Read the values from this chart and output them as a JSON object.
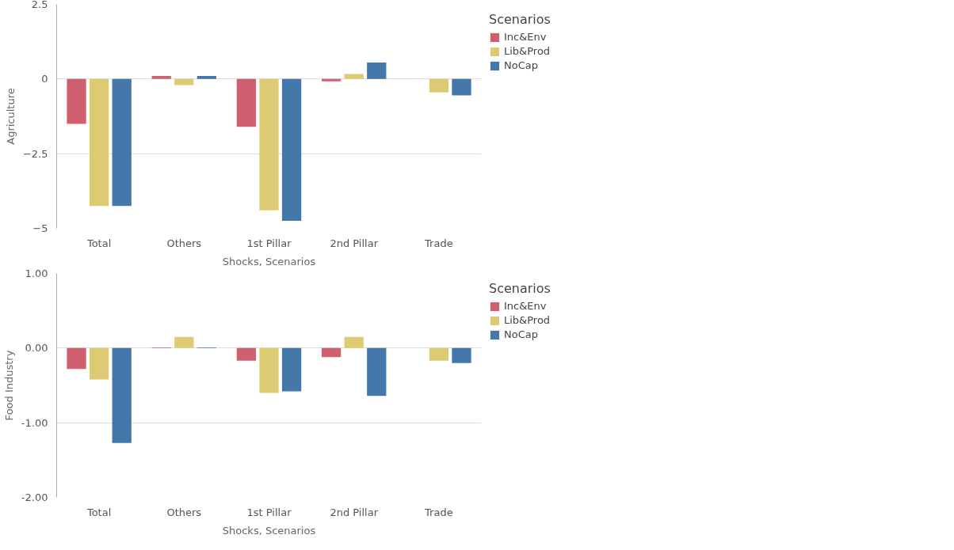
{
  "chart_data": [
    {
      "type": "bar",
      "xlabel": "Shocks, Scenarios",
      "ylabel": "Agriculture",
      "categories": [
        "Total",
        "Others",
        "1st Pillar",
        "2nd Pillar",
        "Trade"
      ],
      "legend_title": "Scenarios",
      "legend": "right",
      "grid": "y",
      "ylim": [
        -5,
        2.5
      ],
      "yticks": [
        2.5,
        0,
        -2.5,
        -5
      ],
      "series": [
        {
          "name": "Inc&Env",
          "color": "#d0606f",
          "values": [
            -1.5,
            0.1,
            -1.6,
            -0.08,
            null
          ]
        },
        {
          "name": "Lib&Prod",
          "color": "#dccb72",
          "values": [
            -4.25,
            -0.2,
            -4.4,
            0.17,
            -0.45
          ]
        },
        {
          "name": "NoCap",
          "color": "#4477aa",
          "values": [
            -4.25,
            0.1,
            -4.75,
            0.55,
            -0.55
          ]
        }
      ]
    },
    {
      "type": "bar",
      "xlabel": "Shocks, Scenarios",
      "ylabel": "Food Industry",
      "categories": [
        "Total",
        "Others",
        "1st Pillar",
        "2nd Pillar",
        "Trade"
      ],
      "legend_title": "Scenarios",
      "legend": "right",
      "grid": "y",
      "ylim": [
        -2,
        1
      ],
      "yticks": [
        {
          "value": 1,
          "label": "1.00"
        },
        {
          "value": 0,
          "label": "0.00"
        },
        {
          "value": -1,
          "label": "-1.00"
        },
        {
          "value": -2,
          "label": "-2.00"
        }
      ],
      "series": [
        {
          "name": "Inc&Env",
          "color": "#d0606f",
          "values": [
            -0.28,
            0.01,
            -0.17,
            -0.12,
            null
          ]
        },
        {
          "name": "Lib&Prod",
          "color": "#dccb72",
          "values": [
            -0.42,
            0.15,
            -0.6,
            0.15,
            -0.17
          ]
        },
        {
          "name": "NoCap",
          "color": "#4477aa",
          "values": [
            -1.27,
            0.01,
            -0.58,
            -0.64,
            -0.2
          ]
        }
      ]
    }
  ]
}
